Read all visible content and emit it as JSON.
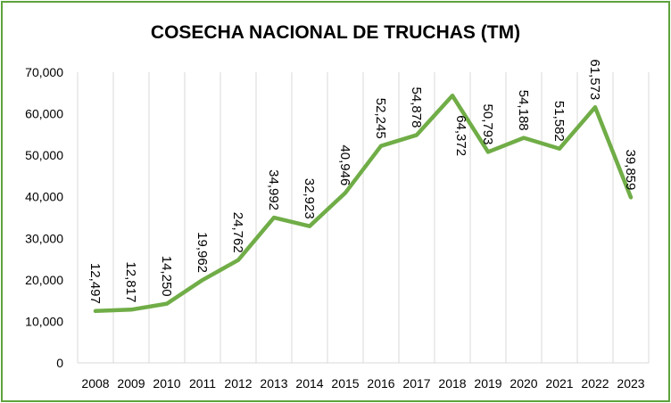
{
  "chart_data": {
    "type": "line",
    "title": "COSECHA NACIONAL DE TRUCHAS (TM)",
    "xlabel": "",
    "ylabel": "",
    "ylim": [
      0,
      70000
    ],
    "ytick_step": 10000,
    "ytick_labels": [
      "0",
      "10,000",
      "20,000",
      "30,000",
      "40,000",
      "50,000",
      "60,000",
      "70,000"
    ],
    "grid": "vertical",
    "legend": "none",
    "line_color": "#70ad47",
    "categories": [
      "2008",
      "2009",
      "2010",
      "2011",
      "2012",
      "2013",
      "2014",
      "2015",
      "2016",
      "2017",
      "2018",
      "2019",
      "2020",
      "2021",
      "2022",
      "2023"
    ],
    "values": [
      12497,
      12817,
      14250,
      19962,
      24762,
      34992,
      32923,
      40946,
      52245,
      54878,
      64372,
      50793,
      54188,
      51582,
      61573,
      39859
    ],
    "data_labels": [
      "12,497",
      "12,817",
      "14,250",
      "19,962",
      "24,762",
      "34,992",
      "32,923",
      "40,946",
      "52,245",
      "54,878",
      "64,372",
      "50,793",
      "54,188",
      "51,582",
      "61,573",
      "39,859"
    ],
    "label_positions": [
      "above",
      "above",
      "above",
      "above",
      "above",
      "above",
      "above",
      "above",
      "above",
      "above",
      "below",
      "above",
      "above",
      "above",
      "above",
      "above"
    ]
  }
}
